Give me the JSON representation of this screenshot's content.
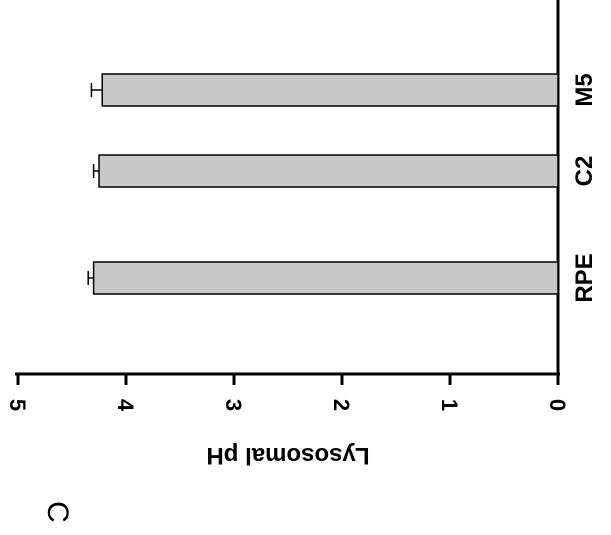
{
  "panel_label": "C",
  "chart_data": {
    "type": "bar",
    "orientation": "horizontal",
    "categories": [
      "RPE",
      "C2",
      "M5"
    ],
    "values": [
      4.3,
      4.25,
      4.22
    ],
    "errors": [
      0.05,
      0.05,
      0.1
    ],
    "ylabel": "Lysosomal pH",
    "ylim": [
      0,
      5
    ],
    "ticks": [
      "0",
      "1",
      "2",
      "3",
      "4",
      "5"
    ],
    "grid": false,
    "legend": "none",
    "colors": {
      "bar_fill": "#c8c8c8",
      "bar_stroke": "#000000",
      "axis": "#000000"
    }
  }
}
